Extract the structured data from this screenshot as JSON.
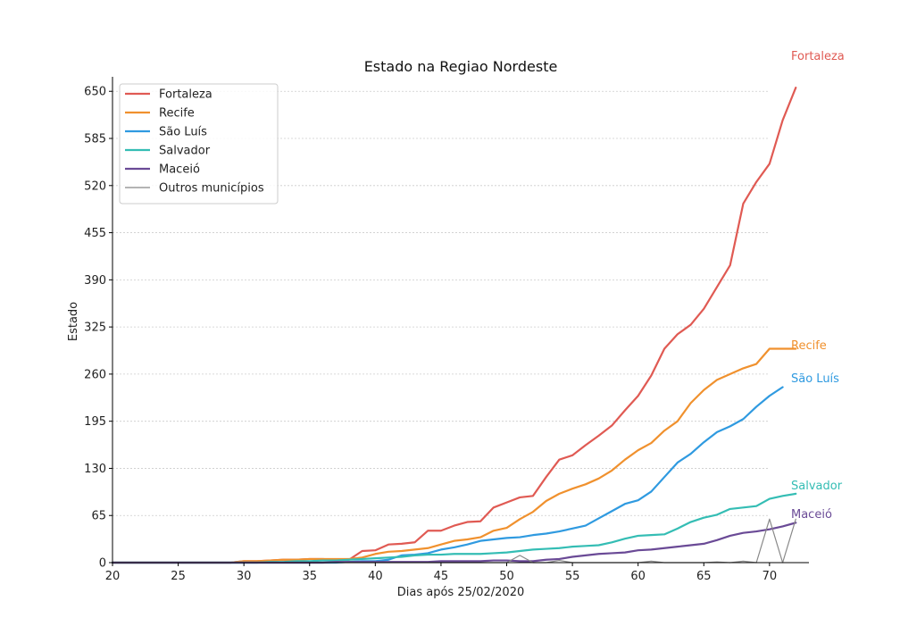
{
  "chart_data": {
    "type": "line",
    "title": "Estado na Regiao Nordeste",
    "xlabel": "Dias após 25/02/2020",
    "ylabel": "Estado",
    "xlim": [
      20,
      73
    ],
    "ylim": [
      0,
      670
    ],
    "xticks": [
      20,
      25,
      30,
      35,
      40,
      45,
      50,
      55,
      60,
      65,
      70
    ],
    "yticks": [
      0,
      65,
      130,
      195,
      260,
      325,
      390,
      455,
      520,
      585,
      650
    ],
    "grid": "horizontal dashed",
    "legend_position": "upper-left",
    "series": [
      {
        "name": "Fortaleza",
        "color": "#e05a53",
        "x_start": 20,
        "values": [
          0,
          0,
          0,
          0,
          0,
          0,
          0,
          0,
          0,
          0,
          2,
          2,
          3,
          4,
          4,
          5,
          5,
          4,
          4,
          16,
          17,
          25,
          26,
          28,
          44,
          44,
          51,
          56,
          57,
          76,
          83,
          90,
          92,
          118,
          142,
          148,
          162,
          175,
          189,
          210,
          230,
          258,
          295,
          315,
          328,
          350,
          380,
          410,
          495,
          525,
          550,
          610,
          655
        ]
      },
      {
        "name": "Recife",
        "color": "#f0912e",
        "x_start": 20,
        "values": [
          0,
          0,
          0,
          0,
          0,
          0,
          0,
          0,
          0,
          0,
          2,
          2,
          3,
          4,
          4,
          5,
          5,
          5,
          5,
          7,
          12,
          15,
          16,
          18,
          20,
          25,
          30,
          32,
          35,
          44,
          48,
          60,
          70,
          85,
          95,
          102,
          108,
          116,
          127,
          142,
          155,
          165,
          182,
          195,
          220,
          238,
          252,
          260,
          268,
          274,
          295,
          295,
          295
        ]
      },
      {
        "name": "São Luís",
        "color": "#2f9ae0",
        "x_start": 20,
        "values": [
          0,
          0,
          0,
          0,
          0,
          0,
          0,
          0,
          0,
          0,
          0,
          0,
          0,
          0,
          0,
          0,
          0,
          0,
          1,
          2,
          2,
          4,
          10,
          11,
          13,
          18,
          21,
          25,
          30,
          32,
          34,
          35,
          38,
          40,
          43,
          47,
          51,
          61,
          71,
          81,
          86,
          98,
          118,
          138,
          150,
          166,
          180,
          188,
          198,
          215,
          230,
          242
        ]
      },
      {
        "name": "Salvador",
        "color": "#34bdb4",
        "x_start": 20,
        "values": [
          0,
          0,
          0,
          0,
          0,
          0,
          0,
          0,
          0,
          0,
          0,
          0,
          1,
          1,
          2,
          2,
          3,
          3,
          4,
          5,
          6,
          7,
          8,
          10,
          11,
          11,
          12,
          12,
          12,
          13,
          14,
          16,
          18,
          19,
          20,
          22,
          23,
          24,
          28,
          33,
          37,
          38,
          39,
          47,
          56,
          62,
          66,
          74,
          76,
          78,
          88,
          92,
          95
        ]
      },
      {
        "name": "Maceió",
        "color": "#6a4a96",
        "x_start": 20,
        "values": [
          0,
          0,
          0,
          0,
          0,
          0,
          0,
          0,
          0,
          0,
          0,
          0,
          0,
          0,
          0,
          0,
          0,
          1,
          1,
          1,
          1,
          1,
          1,
          1,
          1,
          2,
          2,
          2,
          2,
          3,
          3,
          2,
          2,
          4,
          5,
          8,
          10,
          12,
          13,
          14,
          17,
          18,
          20,
          22,
          24,
          26,
          31,
          37,
          41,
          43,
          46,
          50,
          55
        ]
      },
      {
        "name": "Outros municípios",
        "color": "#888888",
        "x_start": 20,
        "values": [
          0,
          0,
          0,
          0,
          0,
          0,
          0,
          0,
          0,
          0,
          0,
          0,
          0,
          0,
          0,
          0,
          0,
          0,
          0,
          0,
          0,
          0,
          0,
          0,
          0,
          0,
          0,
          0,
          0,
          0,
          0,
          10,
          0,
          0,
          3,
          0,
          0,
          0,
          0,
          0,
          0,
          2,
          0,
          0,
          0,
          0,
          1,
          0,
          2,
          0,
          60,
          0,
          60
        ]
      }
    ],
    "end_labels": [
      "Fortaleza",
      "Recife",
      "São Luís",
      "Salvador",
      "Maceió"
    ]
  }
}
